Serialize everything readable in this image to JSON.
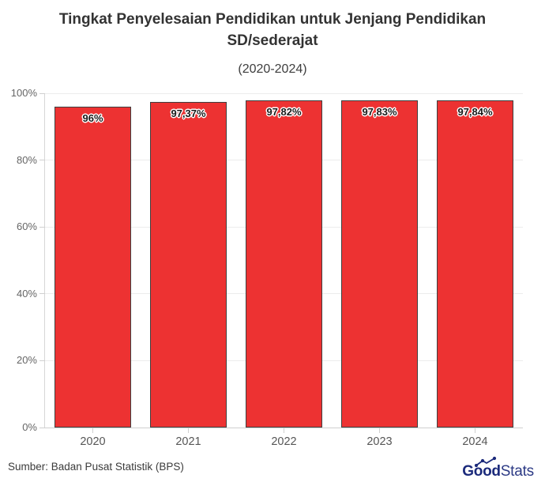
{
  "header": {
    "title": "Tingkat Penyelesaian Pendidikan untuk Jenjang Pendidikan SD/sederajat",
    "subtitle": "(2020-2024)"
  },
  "footer": {
    "source": "Sumber: Badan Pusat Statistik (BPS)",
    "logo_bold": "Good",
    "logo_light": "Stats",
    "logo_color": "#1b2a7b"
  },
  "chart_data": {
    "type": "bar",
    "title": "Tingkat Penyelesaian Pendidikan untuk Jenjang Pendidikan SD/sederajat",
    "subtitle": "(2020-2024)",
    "categories": [
      "2020",
      "2021",
      "2022",
      "2023",
      "2024"
    ],
    "values": [
      96,
      97.37,
      97.82,
      97.83,
      97.84
    ],
    "value_labels": [
      "96%",
      "97,37%",
      "97,82%",
      "97,83%",
      "97,84%"
    ],
    "xlabel": "",
    "ylabel": "",
    "ylim": [
      0,
      100
    ],
    "yticks": [
      0,
      20,
      40,
      60,
      80,
      100
    ],
    "ytick_labels": [
      "0%",
      "20%",
      "40%",
      "60%",
      "80%",
      "100%"
    ],
    "grid": true,
    "legend": "none",
    "bar_color": "#ed3232",
    "bar_border_color": "#3f3f3f"
  }
}
